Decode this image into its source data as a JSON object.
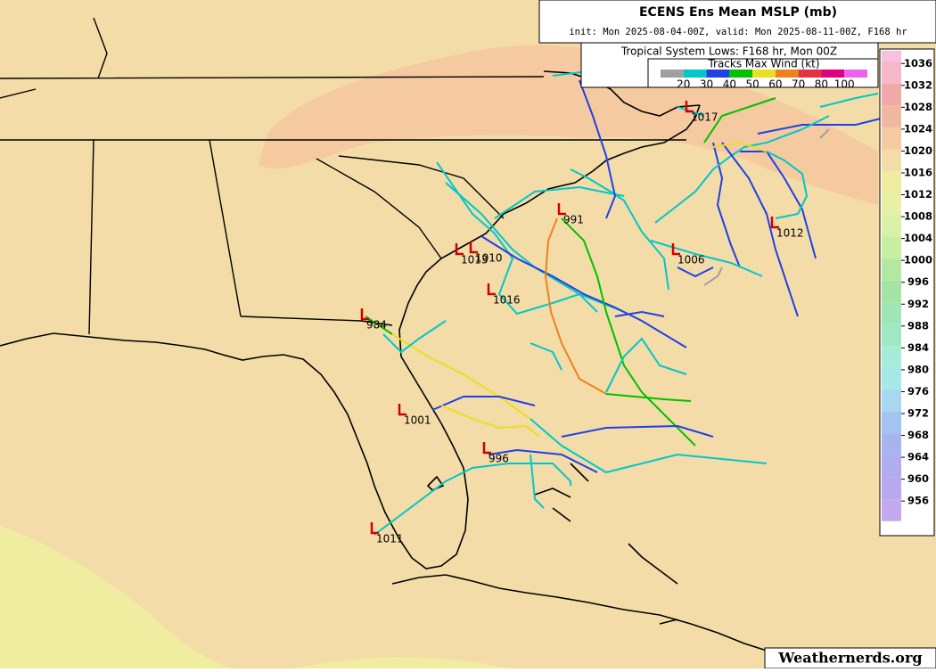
{
  "header": {
    "title": "ECENS Ens Mean MSLP (mb)",
    "subtitle": "init: Mon 2025-08-04-00Z, valid: Mon 2025-08-11-00Z, F168 hr"
  },
  "legend": {
    "title": "Tropical System Lows: F168 hr, Mon 00Z",
    "subtitle": "Tracks Max Wind (kt)",
    "wind_scale": [
      {
        "color": "#a0a0a0"
      },
      {
        "label": "20",
        "color": "#00c8c8"
      },
      {
        "label": "30",
        "color": "#2040e8"
      },
      {
        "label": "40",
        "color": "#00c000"
      },
      {
        "label": "50",
        "color": "#e8e020"
      },
      {
        "label": "60",
        "color": "#f08020"
      },
      {
        "label": "70",
        "color": "#e83040"
      },
      {
        "label": "80",
        "color": "#e0007f"
      },
      {
        "label": "100",
        "color": "#f060f0"
      }
    ]
  },
  "colorbar": [
    {
      "label": "1036",
      "color": "#f6b8c8"
    },
    {
      "label": "1032",
      "color": "#f0a8a8"
    },
    {
      "label": "1028",
      "color": "#f0b8a0"
    },
    {
      "label": "1024",
      "color": "#f5caa0"
    },
    {
      "label": "1020",
      "color": "#f3dca8"
    },
    {
      "label": "1016",
      "color": "#f0eca0"
    },
    {
      "label": "1012",
      "color": "#e8f0a8"
    },
    {
      "label": "1008",
      "color": "#d8f0a8"
    },
    {
      "label": "1004",
      "color": "#c8eea0"
    },
    {
      "label": "1000",
      "color": "#b4e8a0"
    },
    {
      "label": "996",
      "color": "#a4e4a4"
    },
    {
      "label": "992",
      "color": "#a0e6b4"
    },
    {
      "label": "988",
      "color": "#a0e8c4"
    },
    {
      "label": "984",
      "color": "#a6ecd8"
    },
    {
      "label": "980",
      "color": "#a8e8e8"
    },
    {
      "label": "976",
      "color": "#a8d8f0"
    },
    {
      "label": "972",
      "color": "#a4c4f0"
    },
    {
      "label": "968",
      "color": "#a8b4f0"
    },
    {
      "label": "964",
      "color": "#b0acf0"
    },
    {
      "label": "960",
      "color": "#b8a8f0"
    },
    {
      "label": "956",
      "color": "#c4a8f0"
    }
  ],
  "lows": [
    {
      "label": "1017"
    },
    {
      "label": "991"
    },
    {
      "label": "1012"
    },
    {
      "label": "1006"
    },
    {
      "label": "1013"
    },
    {
      "label": "1010"
    },
    {
      "label": "1016"
    },
    {
      "label": "984"
    },
    {
      "label": "1001"
    },
    {
      "label": "996"
    },
    {
      "label": "1011"
    }
  ],
  "credit": "Weathernerds.org"
}
